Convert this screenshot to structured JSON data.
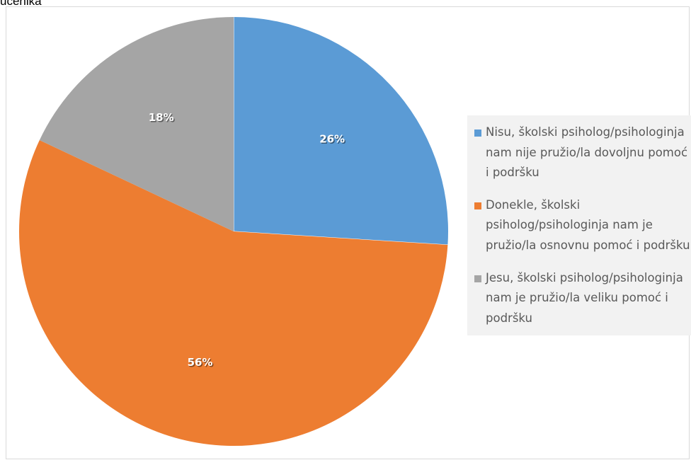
{
  "header_text": "učenika",
  "chart_data": {
    "type": "pie",
    "title": "",
    "categories": [
      "Nisu, školski psiholog/psihologinja nam nije pružio/la dovoljnu pomoć i podršku",
      "Donekle, školski psiholog/psihologinja nam je pružio/la osnovnu pomoć i podršku",
      "Jesu, školski psiholog/psihologinja nam je pružio/la veliku pomoć i podršku"
    ],
    "values": [
      26,
      56,
      18
    ],
    "data_labels": [
      "26%",
      "56%",
      "18%"
    ],
    "colors": [
      "#5b9bd5",
      "#ed7d31",
      "#a5a5a5"
    ],
    "legend_position": "right"
  }
}
